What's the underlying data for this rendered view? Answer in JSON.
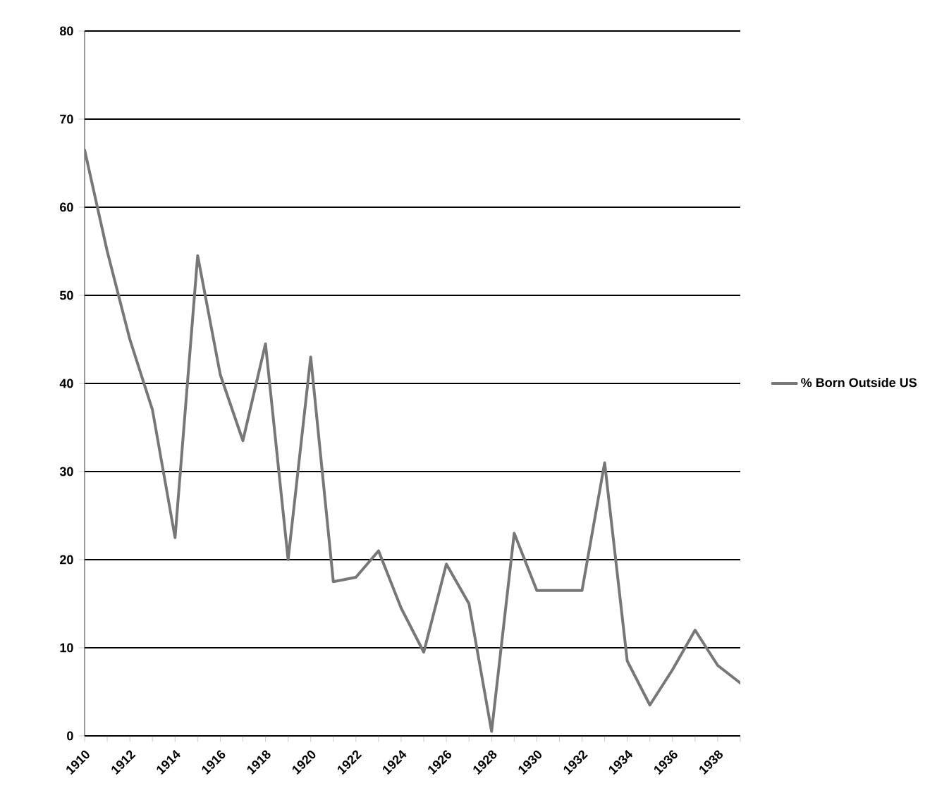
{
  "chart_data": {
    "type": "line",
    "categories": [
      "1910",
      null,
      "1912",
      null,
      "1914",
      null,
      "1916",
      null,
      "1918",
      null,
      "1920",
      null,
      "1922",
      null,
      "1924",
      null,
      "1926",
      null,
      "1928",
      null,
      "1930",
      null,
      "1932",
      null,
      "1934",
      null,
      "1936",
      null,
      "1938",
      null
    ],
    "series": [
      {
        "name": "% Born Outside US",
        "color": "#777777",
        "values": [
          66.5,
          55,
          45,
          37,
          22.5,
          54.5,
          41,
          33.5,
          44.5,
          20,
          43,
          17.5,
          18,
          21,
          14.5,
          9.5,
          19.5,
          15,
          0.5,
          23,
          16.5,
          16.5,
          16.5,
          31,
          8.5,
          3.5,
          7.5,
          12,
          8,
          6
        ]
      }
    ],
    "ylim": [
      0,
      80
    ],
    "yticks": [
      0,
      10,
      20,
      30,
      40,
      50,
      60,
      70,
      80
    ],
    "grid": "y",
    "legend": "right",
    "marker": "none",
    "line_style": "solid"
  }
}
